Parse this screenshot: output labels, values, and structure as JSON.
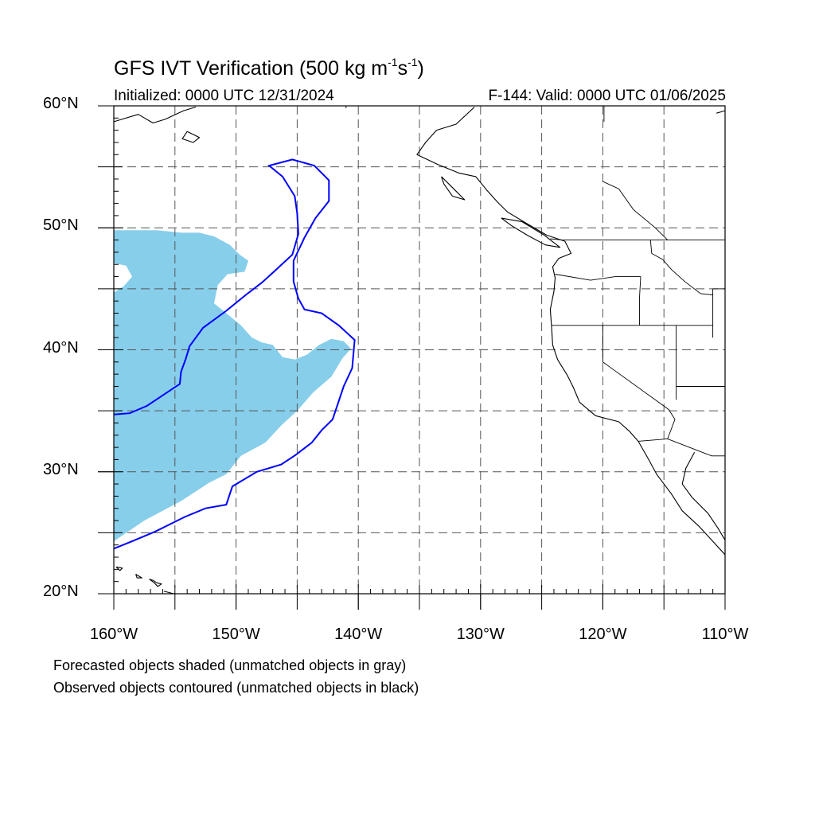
{
  "title": {
    "text": "GFS IVT Verification (500 kg m",
    "sup1": "-1",
    "mid": "s",
    "sup2": "-1",
    "end": ")"
  },
  "initialized": "Initialized: 0000 UTC 12/31/2024",
  "valid": "F-144: Valid: 0000 UTC 01/06/2025",
  "lat_ticks": [
    {
      "deg": 60,
      "label": "60°N"
    },
    {
      "deg": 50,
      "label": "50°N"
    },
    {
      "deg": 40,
      "label": "40°N"
    },
    {
      "deg": 30,
      "label": "30°N"
    },
    {
      "deg": 20,
      "label": "20°N"
    }
  ],
  "lon_ticks": [
    {
      "deg": -160,
      "label": "160°W"
    },
    {
      "deg": -150,
      "label": "150°W"
    },
    {
      "deg": -140,
      "label": "140°W"
    },
    {
      "deg": -130,
      "label": "130°W"
    },
    {
      "deg": -120,
      "label": "120°W"
    },
    {
      "deg": -110,
      "label": "110°W"
    }
  ],
  "footnotes": [
    "Forecasted objects shaded (unmatched objects in gray)",
    "Observed objects contoured (unmatched objects in black)"
  ],
  "map": {
    "lon_range": [
      -160,
      -110
    ],
    "lat_range": [
      20,
      60
    ],
    "grid_lons": [
      -155,
      -150,
      -145,
      -140,
      -135,
      -130,
      -125,
      -120,
      -115
    ],
    "grid_lats": [
      25,
      30,
      35,
      40,
      45,
      50,
      55
    ],
    "colors": {
      "forecast_fill": "#87ceeb",
      "observed_contour": "#0000ff",
      "coastline": "#000000",
      "grid": "#555555"
    },
    "forecast_object": [
      [
        -160,
        49.8
      ],
      [
        -156.5,
        49.8
      ],
      [
        -154.5,
        49.6
      ],
      [
        -153,
        49.6
      ],
      [
        -151.8,
        49.3
      ],
      [
        -150.5,
        48.6
      ],
      [
        -149.7,
        47.8
      ],
      [
        -149,
        47.3
      ],
      [
        -149.3,
        46.4
      ],
      [
        -150.7,
        46.2
      ],
      [
        -151.5,
        45.3
      ],
      [
        -151.8,
        43.8
      ],
      [
        -150.8,
        43
      ],
      [
        -149.6,
        42
      ],
      [
        -148.7,
        41
      ],
      [
        -147.9,
        40.6
      ],
      [
        -147,
        40.4
      ],
      [
        -146.2,
        39.4
      ],
      [
        -145.2,
        39.2
      ],
      [
        -144.2,
        39.6
      ],
      [
        -143.2,
        40.4
      ],
      [
        -142.2,
        40.9
      ],
      [
        -141.2,
        40.7
      ],
      [
        -140.6,
        40.1
      ],
      [
        -141.3,
        39.3
      ],
      [
        -142.2,
        37.8
      ],
      [
        -143.7,
        36.5
      ],
      [
        -145,
        35
      ],
      [
        -146.3,
        33.8
      ],
      [
        -147.6,
        32.4
      ],
      [
        -149.6,
        31.3
      ],
      [
        -150.8,
        29.8
      ],
      [
        -152.2,
        29.1
      ],
      [
        -154.5,
        27.6
      ],
      [
        -157.5,
        26
      ],
      [
        -160,
        24.3
      ]
    ],
    "forecast_hole": [
      [
        -160,
        47.1
      ],
      [
        -159,
        46.9
      ],
      [
        -158.5,
        46
      ],
      [
        -159.2,
        45.2
      ],
      [
        -160,
        44.7
      ]
    ],
    "observed_contour": [
      [
        -160,
        34.7
      ],
      [
        -158.7,
        34.8
      ],
      [
        -157.3,
        35.4
      ],
      [
        -155.8,
        36.4
      ],
      [
        -154.6,
        37.2
      ],
      [
        -154.5,
        38.2
      ],
      [
        -154.1,
        39.3
      ],
      [
        -153.8,
        40.3
      ],
      [
        -152.7,
        41.8
      ],
      [
        -150.8,
        43.2
      ],
      [
        -149.2,
        44.5
      ],
      [
        -147.9,
        45.5
      ],
      [
        -146.8,
        46.5
      ],
      [
        -145.4,
        47.8
      ],
      [
        -144.9,
        49.5
      ],
      [
        -145,
        51.2
      ],
      [
        -145.2,
        52.6
      ],
      [
        -146.2,
        54.2
      ],
      [
        -147.3,
        55.1
      ],
      [
        -145.4,
        55.6
      ],
      [
        -143.6,
        55.1
      ],
      [
        -142.4,
        53.9
      ],
      [
        -142.4,
        52.2
      ],
      [
        -143.5,
        50.8
      ],
      [
        -144.4,
        49.2
      ],
      [
        -145.3,
        47.3
      ],
      [
        -145.3,
        45.6
      ],
      [
        -144.9,
        44.2
      ],
      [
        -144.4,
        43.3
      ],
      [
        -143,
        43
      ],
      [
        -141.6,
        42
      ],
      [
        -140.3,
        40.8
      ],
      [
        -140.5,
        38.5
      ],
      [
        -141.2,
        37
      ],
      [
        -141.7,
        35.5
      ],
      [
        -142.1,
        34.3
      ],
      [
        -143,
        33.4
      ],
      [
        -143.8,
        32.4
      ],
      [
        -145.1,
        31.4
      ],
      [
        -146.3,
        30.6
      ],
      [
        -148.3,
        30
      ],
      [
        -150.3,
        28.8
      ],
      [
        -150.8,
        27.3
      ],
      [
        -152.5,
        27
      ],
      [
        -154.2,
        26.3
      ],
      [
        -156.6,
        25.1
      ],
      [
        -158.5,
        24.3
      ],
      [
        -160,
        23.7
      ]
    ],
    "coastlines": [
      [
        [
          -130.5,
          59.9
        ],
        [
          -132,
          58.5
        ],
        [
          -133.6,
          58
        ],
        [
          -134.5,
          57
        ],
        [
          -135.2,
          56
        ],
        [
          -133.5,
          55.2
        ],
        [
          -131.8,
          54.5
        ],
        [
          -130.4,
          54.2
        ],
        [
          -129.5,
          53.1
        ],
        [
          -128.6,
          52.1
        ],
        [
          -127.8,
          51.3
        ],
        [
          -126.3,
          50.4
        ],
        [
          -124.6,
          49.4
        ],
        [
          -123.1,
          48.9
        ],
        [
          -122.6,
          47.9
        ],
        [
          -123.6,
          47.5
        ],
        [
          -124.1,
          46.8
        ],
        [
          -123.9,
          45.9
        ],
        [
          -124,
          44.8
        ],
        [
          -124.3,
          43.3
        ],
        [
          -124.2,
          42
        ],
        [
          -124.1,
          40.4
        ],
        [
          -123.7,
          39.2
        ],
        [
          -122.9,
          37.9
        ],
        [
          -122.4,
          36.9
        ],
        [
          -121.9,
          35.7
        ],
        [
          -120.6,
          34.6
        ],
        [
          -118.7,
          34.1
        ],
        [
          -117.8,
          33.3
        ],
        [
          -117.1,
          32.5
        ],
        [
          -116.3,
          31.1
        ],
        [
          -115.6,
          29.8
        ],
        [
          -114.4,
          28.2
        ],
        [
          -113.5,
          26.8
        ],
        [
          -112.1,
          25.5
        ],
        [
          -111,
          24.3
        ],
        [
          -110,
          23.2
        ]
      ],
      [
        [
          -112.5,
          31.6
        ],
        [
          -113.2,
          30.3
        ],
        [
          -113.5,
          29
        ],
        [
          -112.7,
          27.9
        ],
        [
          -111.4,
          26.6
        ],
        [
          -110.6,
          25.4
        ],
        [
          -110,
          24.4
        ]
      ],
      [
        [
          -133.2,
          54.2
        ],
        [
          -132.2,
          53.2
        ],
        [
          -131.3,
          52.3
        ],
        [
          -132.3,
          52.6
        ],
        [
          -133,
          53.6
        ],
        [
          -133.2,
          54.2
        ]
      ],
      [
        [
          -128.3,
          50.8
        ],
        [
          -126.6,
          50.5
        ],
        [
          -124.8,
          49.4
        ],
        [
          -123.5,
          48.4
        ],
        [
          -124.7,
          48.6
        ],
        [
          -126.2,
          49.4
        ],
        [
          -127.5,
          50.2
        ],
        [
          -128.3,
          50.8
        ]
      ],
      [
        [
          -160,
          58.7
        ],
        [
          -158,
          59.3
        ],
        [
          -156.8,
          58.6
        ],
        [
          -155.8,
          58.9
        ],
        [
          -154.3,
          59.6
        ],
        [
          -153.3,
          59.9
        ]
      ],
      [
        [
          -154,
          57.9
        ],
        [
          -153,
          57.4
        ],
        [
          -153.5,
          57
        ],
        [
          -154.4,
          57.3
        ],
        [
          -154,
          57.9
        ]
      ],
      [
        [
          -110.7,
          59.4
        ],
        [
          -110,
          59.6
        ]
      ],
      [
        [
          -159.8,
          22.2
        ],
        [
          -159.3,
          22.1
        ],
        [
          -159.5,
          21.9
        ],
        [
          -159.8,
          22.2
        ]
      ],
      [
        [
          -158.2,
          21.6
        ],
        [
          -157.7,
          21.3
        ],
        [
          -158.1,
          21.3
        ],
        [
          -158.2,
          21.6
        ]
      ],
      [
        [
          -157.1,
          21.2
        ],
        [
          -156.8,
          21.1
        ],
        [
          -156.5,
          20.9
        ],
        [
          -156.1,
          20.8
        ],
        [
          -156.4,
          20.6
        ],
        [
          -156.7,
          20.9
        ],
        [
          -157.1,
          21.2
        ]
      ],
      [
        [
          -155.9,
          20.2
        ],
        [
          -155.1,
          20
        ],
        [
          -155.9,
          19.6
        ]
      ]
    ],
    "borders": [
      [
        [
          -141,
          60
        ],
        [
          -141,
          59.8
        ]
      ],
      [
        [
          -123.3,
          49
        ],
        [
          -110,
          49
        ]
      ],
      [
        [
          -123.9,
          46.2
        ],
        [
          -121,
          45.7
        ],
        [
          -119,
          46
        ],
        [
          -116.9,
          46
        ]
      ],
      [
        [
          -116.9,
          46
        ],
        [
          -117,
          44.3
        ],
        [
          -117,
          42
        ]
      ],
      [
        [
          -124.2,
          42
        ],
        [
          -111,
          42
        ]
      ],
      [
        [
          -120,
          42
        ],
        [
          -120,
          39
        ],
        [
          -114.6,
          35.1
        ]
      ],
      [
        [
          -114.6,
          35.1
        ],
        [
          -114.1,
          34.3
        ],
        [
          -114.7,
          32.7
        ]
      ],
      [
        [
          -117.1,
          32.5
        ],
        [
          -114.7,
          32.7
        ],
        [
          -111.1,
          31.3
        ],
        [
          -110,
          31.3
        ]
      ],
      [
        [
          -114,
          42
        ],
        [
          -114,
          35.9
        ]
      ],
      [
        [
          -114,
          37
        ],
        [
          -110,
          37
        ]
      ],
      [
        [
          -116.1,
          49
        ],
        [
          -116,
          47.9
        ],
        [
          -115.1,
          47.4
        ],
        [
          -114.4,
          46.6
        ],
        [
          -113.3,
          45.6
        ],
        [
          -112,
          44.6
        ],
        [
          -111,
          44.5
        ]
      ],
      [
        [
          -111,
          45
        ],
        [
          -111,
          41
        ]
      ],
      [
        [
          -111,
          45
        ],
        [
          -110,
          45
        ]
      ],
      [
        [
          -119.9,
          60
        ],
        [
          -119.9,
          58.7
        ]
      ],
      [
        [
          -120,
          53.8
        ],
        [
          -118.7,
          53.2
        ],
        [
          -117.5,
          51.5
        ],
        [
          -115.7,
          50
        ],
        [
          -114.7,
          49
        ]
      ],
      [
        [
          -124.3,
          49.1
        ],
        [
          -123.3,
          49
        ]
      ]
    ]
  }
}
